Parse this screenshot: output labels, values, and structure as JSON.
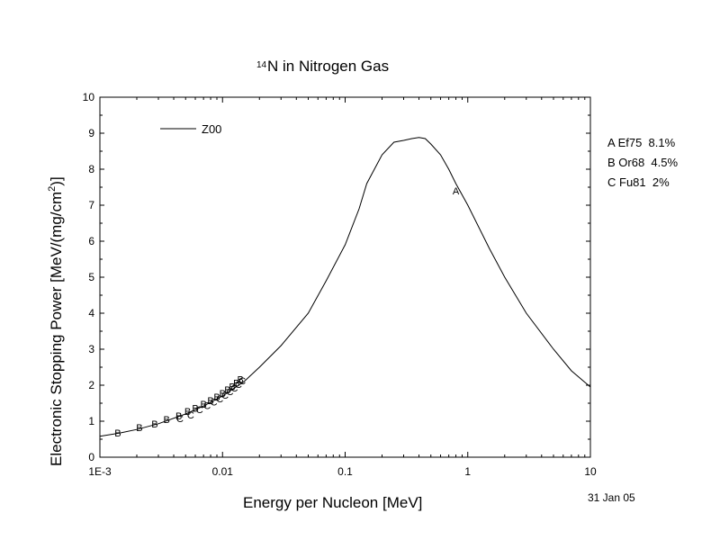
{
  "chart_data": {
    "type": "line",
    "title": {
      "superscript": "14",
      "main": "N in Nitrogen Gas"
    },
    "xlabel": "Energy per Nucleon [MeV]",
    "ylabel": "Electronic Stopping Power [MeV/(mg/cm",
    "ylabel_sup": "2",
    "ylabel_end": ")]",
    "x_scale": "log",
    "xlim": [
      0.001,
      10
    ],
    "ylim": [
      0,
      10
    ],
    "x_ticks": [
      {
        "value": 0.001,
        "label": "1E-3"
      },
      {
        "value": 0.01,
        "label": "0.01"
      },
      {
        "value": 0.1,
        "label": "0.1"
      },
      {
        "value": 1,
        "label": "1"
      },
      {
        "value": 10,
        "label": "10"
      }
    ],
    "y_ticks": [
      0,
      1,
      2,
      3,
      4,
      5,
      6,
      7,
      8,
      9,
      10
    ],
    "grid": false,
    "legend_line": "Z00",
    "series": [
      {
        "name": "Z00",
        "x": [
          0.001,
          0.0015,
          0.002,
          0.003,
          0.005,
          0.007,
          0.01,
          0.015,
          0.02,
          0.03,
          0.05,
          0.07,
          0.1,
          0.13,
          0.15,
          0.2,
          0.25,
          0.3,
          0.35,
          0.4,
          0.45,
          0.5,
          0.6,
          0.7,
          0.8,
          1,
          1.5,
          2,
          3,
          5,
          7,
          10
        ],
        "y": [
          0.58,
          0.68,
          0.77,
          0.93,
          1.2,
          1.42,
          1.7,
          2.1,
          2.5,
          3.1,
          4.0,
          4.9,
          5.9,
          6.9,
          7.6,
          8.4,
          8.75,
          8.8,
          8.85,
          8.88,
          8.85,
          8.7,
          8.4,
          8.0,
          7.6,
          7.0,
          5.8,
          5.0,
          4.0,
          3.0,
          2.4,
          1.95
        ]
      }
    ],
    "experimental": [
      {
        "marker": "A",
        "label": "A Ef75  8.1%",
        "points": [
          [
            0.8,
            7.4
          ]
        ]
      },
      {
        "marker": "B",
        "label": "B Or68  4.5%",
        "points": [
          [
            0.0014,
            0.68
          ],
          [
            0.0021,
            0.82
          ],
          [
            0.0028,
            0.93
          ],
          [
            0.0035,
            1.05
          ],
          [
            0.0044,
            1.15
          ],
          [
            0.0052,
            1.27
          ],
          [
            0.006,
            1.36
          ],
          [
            0.007,
            1.47
          ],
          [
            0.008,
            1.58
          ],
          [
            0.009,
            1.68
          ],
          [
            0.01,
            1.78
          ],
          [
            0.011,
            1.88
          ],
          [
            0.012,
            1.96
          ],
          [
            0.013,
            2.06
          ],
          [
            0.014,
            2.16
          ]
        ]
      },
      {
        "marker": "C",
        "label": "C Fu81  2%",
        "points": [
          [
            0.0045,
            1.08
          ],
          [
            0.0055,
            1.18
          ],
          [
            0.0065,
            1.32
          ],
          [
            0.0075,
            1.44
          ],
          [
            0.0085,
            1.54
          ],
          [
            0.0095,
            1.62
          ],
          [
            0.0105,
            1.72
          ],
          [
            0.0115,
            1.82
          ],
          [
            0.0125,
            1.93
          ],
          [
            0.0135,
            2.02
          ],
          [
            0.0145,
            2.12
          ]
        ]
      }
    ],
    "date_label": "31 Jan 05"
  }
}
